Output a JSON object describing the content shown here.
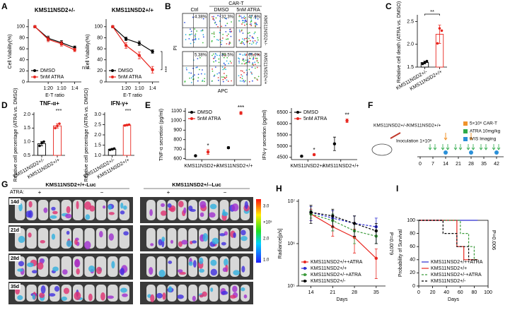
{
  "panel_labels": [
    "A",
    "B",
    "C",
    "D",
    "E",
    "F",
    "G",
    "H",
    "I"
  ],
  "chart_data": [
    {
      "type": "line",
      "title": "KMS11NSD2+/-",
      "categories": [
        null,
        "1:20",
        "1:10",
        "1:4"
      ],
      "xlabel": "E-T ratio",
      "ylabel": "Cell Viability(%)",
      "ylim": [
        0,
        110
      ],
      "yticks": [
        0,
        20,
        40,
        60,
        80,
        100
      ],
      "legend": "lower left",
      "annotation": "n.s.",
      "series": [
        {
          "name": "DMSO",
          "color": "#000000",
          "values": [
            100,
            79,
            71,
            62
          ],
          "errors": [
            2,
            4,
            4,
            3
          ]
        },
        {
          "name": "5nM ATRA",
          "color": "#e8261f",
          "values": [
            100,
            77,
            69,
            58
          ],
          "errors": [
            2,
            4,
            4,
            3
          ]
        }
      ]
    },
    {
      "type": "line",
      "title": "KMS11NSD2+/+",
      "categories": [
        null,
        "1:20",
        "1:10",
        "1:4"
      ],
      "xlabel": "E-T ratio",
      "ylabel": "Cell Viability(%)",
      "ylim": [
        0,
        110
      ],
      "yticks": [
        0,
        20,
        40,
        60,
        80,
        100
      ],
      "legend": "lower left",
      "annotation": "***",
      "series": [
        {
          "name": "DMSO",
          "color": "#000000",
          "values": [
            100,
            78,
            70,
            55
          ],
          "errors": [
            2,
            3,
            4,
            3
          ]
        },
        {
          "name": "5nM ATRA",
          "color": "#e8261f",
          "values": [
            100,
            66,
            48,
            22
          ],
          "errors": [
            2,
            5,
            6,
            6
          ]
        }
      ]
    },
    {
      "type": "bar",
      "categories": [
        "KMS11NSD2+/-",
        "KMS11NSD2+/+"
      ],
      "ylabel": "Relative cell death (ATRA vs. DMSO)",
      "ylim": [
        1.5,
        2.6
      ],
      "yticks": [
        1.5,
        {
          "value": 2.0,
          "label": "2.0"
        },
        2.5
      ],
      "annotation": "**",
      "values": [
        1.6,
        2.22
      ],
      "errors": [
        0.03,
        0.2
      ],
      "colors": [
        "#000000",
        "#e8261f"
      ],
      "points": [
        [
          1.57,
          1.6,
          1.63
        ],
        [
          2.02,
          2.35,
          2.3
        ]
      ]
    },
    {
      "type": "bar",
      "title": "TNF-α+",
      "categories": [
        "KMS11NSD2+/-",
        "KMS11NSD2+/+"
      ],
      "ylabel": "Relative cell percentage (ATRA vs. DMSO)",
      "ylim": [
        0.5,
        2.0
      ],
      "yticks": [
        0.5,
        {
          "value": 1.0,
          "label": "1.0"
        },
        1.5,
        {
          "value": 2.0,
          "label": "2.0"
        }
      ],
      "annotation": "***",
      "values": [
        0.93,
        1.58
      ],
      "errors": [
        0.08,
        0.08
      ],
      "colors": [
        "#000000",
        "#e8261f"
      ],
      "points": [
        [
          0.85,
          0.95,
          1.0
        ],
        [
          1.5,
          1.58,
          1.66
        ]
      ]
    },
    {
      "type": "bar",
      "title": "IFN-γ+",
      "categories": [
        "KMS11NSD2+/-",
        "KMS11NSD2+/+"
      ],
      "ylabel": "Relative cell percentage (ATRA vs. DMSO)",
      "ylim": [
        1.0,
        3.0
      ],
      "yticks": [
        {
          "value": 1.0,
          "label": "1.0"
        },
        1.5,
        {
          "value": 2.0,
          "label": "2.0"
        },
        2.5,
        {
          "value": 3.0,
          "label": "3.0"
        }
      ],
      "annotation": "***",
      "values": [
        1.3,
        2.48
      ],
      "errors": [
        0.04,
        0.03
      ],
      "colors": [
        "#000000",
        "#e8261f"
      ],
      "points": [
        [
          1.27,
          1.3,
          1.33
        ],
        [
          2.46,
          2.48,
          2.5
        ]
      ]
    },
    {
      "type": "dotplot",
      "categories": [
        "KMS11NSD2+/-",
        "KMS11NSD2+/+"
      ],
      "ylabel": "TNF-α secretion (pg/ml)",
      "ylim": [
        590,
        1110
      ],
      "yticks": [
        600,
        700,
        800,
        900,
        1000,
        1100
      ],
      "legend": "upper left",
      "annotations": [
        "*",
        "***"
      ],
      "series": [
        {
          "name": "DMSO",
          "color": "#000000",
          "values": [
            630,
            715
          ],
          "errors": [
            5,
            10
          ]
        },
        {
          "name": "5nM ATRA",
          "color": "#e8261f",
          "values": [
            670,
            1080
          ],
          "errors": [
            25,
            15
          ]
        }
      ]
    },
    {
      "type": "dotplot",
      "categories": [
        "KMS11NSD2+/-",
        "KMS11NSD2+/+"
      ],
      "ylabel": "IFN-γ secretion (pg/ml)",
      "ylim": [
        4400,
        6600
      ],
      "yticks": [
        4500,
        5000,
        5500,
        6000,
        6500
      ],
      "legend": "upper left",
      "annotations": [
        "*",
        "**"
      ],
      "series": [
        {
          "name": "DMSO",
          "color": "#000000",
          "values": [
            4550,
            5100
          ],
          "errors": [
            30,
            300
          ]
        },
        {
          "name": "5nM ATRA",
          "color": "#e8261f",
          "values": [
            4620,
            6130
          ],
          "errors": [
            40,
            80
          ]
        }
      ]
    },
    {
      "type": "line",
      "x": [
        14,
        21,
        28,
        35
      ],
      "xlim": [
        10,
        38
      ],
      "xticks": [
        14,
        21,
        28,
        35
      ],
      "xlabel": "Days",
      "ylabel": "Radiance[p/s]",
      "log_y": true,
      "ylim": [
        100000,
        10000000
      ],
      "yticks": [
        {
          "value": 100000,
          "label": "10⁵"
        },
        {
          "value": 1000000,
          "label": "10⁶"
        },
        {
          "value": 10000000,
          "label": "10⁷"
        }
      ],
      "legend": "lower left",
      "annotation": "P=0.0079",
      "series": [
        {
          "name": "KMS11NSD2+/++ATRA",
          "color": "#e8261f",
          "dashed": false,
          "values": [
            5000000,
            2500000,
            1400000,
            450000
          ],
          "errors": [
            1500000,
            1000000,
            800000,
            300000
          ]
        },
        {
          "name": "KMS11NSD2+/+",
          "color": "#2b2bd0",
          "dashed": true,
          "values": [
            5500000,
            4000000,
            3000000,
            2500000
          ],
          "errors": [
            2000000,
            2000000,
            1500000,
            1500000
          ]
        },
        {
          "name": "KMS11NSD2+/-+ATRA",
          "color": "#3a9a3a",
          "dashed": true,
          "values": [
            5000000,
            3500000,
            2000000,
            1500000
          ],
          "errors": [
            1000000,
            1500000,
            1000000,
            500000
          ]
        },
        {
          "name": "KMS11NSD2+/-",
          "color": "#000000",
          "dashed": true,
          "values": [
            5500000,
            4500000,
            3000000,
            2000000
          ],
          "errors": [
            2500000,
            2000000,
            1500000,
            1000000
          ]
        }
      ]
    },
    {
      "type": "step",
      "xlim": [
        0,
        100
      ],
      "xticks": [
        0,
        20,
        40,
        60,
        80,
        100
      ],
      "xlabel": "Days",
      "ylabel": "Probability of Survival",
      "ylim": [
        0,
        100
      ],
      "yticks": [
        0,
        20,
        40,
        60,
        80,
        100
      ],
      "legend": "lower left",
      "annotation": "P=0.006",
      "series": [
        {
          "name": "KMS11NSD2+/++ATRA",
          "color": "#2b2bd0",
          "dashed": false,
          "x": [
            0,
            85
          ],
          "values": [
            100,
            100
          ]
        },
        {
          "name": "KMS11NSD2+/+",
          "color": "#e8261f",
          "dashed": false,
          "x": [
            0,
            55,
            65,
            85
          ],
          "values": [
            100,
            60,
            40,
            40
          ]
        },
        {
          "name": "KMS11NSD2+/-+ATRA",
          "color": "#3a9a3a",
          "dashed": true,
          "x": [
            0,
            60,
            72,
            80,
            85
          ],
          "values": [
            100,
            80,
            60,
            40,
            40
          ]
        },
        {
          "name": "KMS11NSD2+/-",
          "color": "#000000",
          "dashed": true,
          "x": [
            0,
            35,
            55,
            72,
            85
          ],
          "values": [
            100,
            80,
            60,
            40,
            40
          ]
        }
      ]
    }
  ],
  "panel_b": {
    "header": "CAR-T",
    "columns": [
      "Ctrl",
      "DMSO",
      "5nM ATRA"
    ],
    "y_axis": "PI",
    "x_axis": "APC",
    "rows": [
      {
        "label": "KMS11NSD2+/-",
        "percents": [
          "4.38%",
          "32.3%",
          "47.6%"
        ]
      },
      {
        "label": "KMS11NSD2+/+",
        "percents": [
          "5.38%",
          "30.5%",
          "69.9%"
        ]
      }
    ]
  },
  "panel_f": {
    "cell_lines": "KMS11NSD2+/-/KMS11NSD2+/+",
    "inoculation": "Inoculation 1×10⁶",
    "days": [
      "0",
      "7",
      "14",
      "21",
      "28",
      "35",
      "42"
    ],
    "legend": [
      "5×10⁶ CAR-T",
      "ATRA 10mg/kg",
      "IVIS Imaging"
    ]
  },
  "panel_g": {
    "treatment_label": "ATRA:",
    "timepoints": [
      "14d",
      "21d",
      "28d",
      "35d"
    ],
    "groups": [
      {
        "title": "KMS11NSD2+/+-Luc",
        "treatments": [
          "+",
          "−"
        ]
      },
      {
        "title": "KMS11NSD2+/--Luc",
        "treatments": [
          "+",
          "−"
        ]
      }
    ],
    "colorbar": {
      "ticks": [
        "3.0",
        "2.0",
        "1.0"
      ],
      "unit": "×10⁵"
    }
  }
}
